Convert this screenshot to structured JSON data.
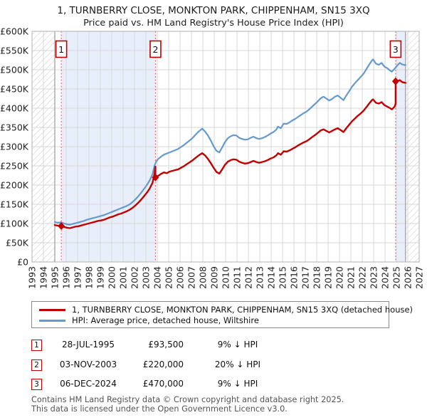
{
  "title": "1, TURNBERRY CLOSE, MONKTON PARK, CHIPPENHAM, SN15 3XQ",
  "subtitle": "Price paid vs. HM Land Registry's House Price Index (HPI)",
  "legend": {
    "property": "1, TURNBERRY CLOSE, MONKTON PARK, CHIPPENHAM, SN15 3XQ (detached house)",
    "hpi": "HPI: Average price, detached house, Wiltshire"
  },
  "colors": {
    "property_line": "#c00000",
    "hpi_line": "#6699cc",
    "sale_dash": "#f07070",
    "shade": "#e9effa",
    "hatch": "#c8c8c8",
    "grid": "#d7d7d7",
    "border": "#b0b0b0",
    "boundary": "#999999",
    "axis_text": "#222222"
  },
  "sales_table": {
    "rows": [
      {
        "num": "1",
        "date": "28-JUL-1995",
        "price": "£93,500",
        "vs_hpi": "9% ↓ HPI"
      },
      {
        "num": "2",
        "date": "03-NOV-2003",
        "price": "£220,000",
        "vs_hpi": "20% ↓ HPI"
      },
      {
        "num": "3",
        "date": "06-DEC-2024",
        "price": "£470,000",
        "vs_hpi": "9% ↓ HPI"
      }
    ]
  },
  "footer": {
    "line1": "Contains HM Land Registry data © Crown copyright and database right 2025.",
    "line2": "This data is licensed under the Open Government Licence v3.0."
  },
  "chart_data": {
    "type": "line",
    "x_range": [
      1993,
      2027
    ],
    "y_range": [
      0,
      600
    ],
    "x_tick_labels": [
      "1993",
      "1994",
      "1995",
      "1996",
      "1997",
      "1998",
      "1999",
      "2000",
      "2001",
      "2002",
      "2003",
      "2004",
      "2005",
      "2006",
      "2007",
      "2008",
      "2009",
      "2010",
      "2011",
      "2012",
      "2013",
      "2014",
      "2015",
      "2016",
      "2017",
      "2018",
      "2019",
      "2020",
      "2021",
      "2022",
      "2023",
      "2024",
      "2025",
      "2026",
      "2027"
    ],
    "y_ticks": [
      [
        0,
        "£0"
      ],
      [
        50,
        "£50K"
      ],
      [
        100,
        "£100K"
      ],
      [
        150,
        "£150K"
      ],
      [
        200,
        "£200K"
      ],
      [
        250,
        "£250K"
      ],
      [
        300,
        "£300K"
      ],
      [
        350,
        "£350K"
      ],
      [
        400,
        "£400K"
      ],
      [
        450,
        "£450K"
      ],
      [
        500,
        "£500K"
      ],
      [
        550,
        "£550K"
      ],
      [
        600,
        "£600K"
      ]
    ],
    "data_start_year": 1995.0,
    "data_end_year": 2025.8,
    "regions": {
      "hatch": [
        [
          1993,
          1995.0
        ],
        [
          2025.8,
          2027
        ]
      ],
      "shade": [
        [
          1995.57,
          2003.84
        ],
        [
          2024.93,
          2025.8
        ]
      ]
    },
    "sales": [
      {
        "num": "1",
        "year": 1995.57,
        "price_k": 93.5
      },
      {
        "num": "2",
        "year": 2003.84,
        "price_k": 220
      },
      {
        "num": "3",
        "year": 2024.93,
        "price_k": 470
      }
    ],
    "series": [
      {
        "name": "HPI: Average price, detached house, Wiltshire",
        "color_key": "hpi_line",
        "points": [
          [
            1995.0,
            104
          ],
          [
            1995.25,
            102
          ],
          [
            1995.57,
            103
          ],
          [
            1995.83,
            100
          ],
          [
            1996.08,
            98
          ],
          [
            1996.33,
            97
          ],
          [
            1996.58,
            99
          ],
          [
            1996.83,
            101
          ],
          [
            1997.08,
            103
          ],
          [
            1997.33,
            105
          ],
          [
            1997.58,
            107
          ],
          [
            1997.83,
            110
          ],
          [
            1998.08,
            112
          ],
          [
            1998.33,
            114
          ],
          [
            1998.58,
            116
          ],
          [
            1998.83,
            118
          ],
          [
            1999.08,
            120
          ],
          [
            1999.33,
            122
          ],
          [
            1999.58,
            125
          ],
          [
            1999.83,
            128
          ],
          [
            2000.08,
            131
          ],
          [
            2000.33,
            134
          ],
          [
            2000.58,
            137
          ],
          [
            2000.83,
            140
          ],
          [
            2001.08,
            143
          ],
          [
            2001.33,
            146
          ],
          [
            2001.58,
            150
          ],
          [
            2001.83,
            156
          ],
          [
            2002.08,
            163
          ],
          [
            2002.33,
            171
          ],
          [
            2002.58,
            180
          ],
          [
            2002.83,
            190
          ],
          [
            2003.08,
            200
          ],
          [
            2003.33,
            212
          ],
          [
            2003.58,
            228
          ],
          [
            2003.75,
            250
          ],
          [
            2003.92,
            262
          ],
          [
            2004.08,
            268
          ],
          [
            2004.33,
            274
          ],
          [
            2004.58,
            279
          ],
          [
            2004.83,
            282
          ],
          [
            2005.08,
            285
          ],
          [
            2005.33,
            288
          ],
          [
            2005.58,
            291
          ],
          [
            2005.83,
            294
          ],
          [
            2006.08,
            299
          ],
          [
            2006.33,
            304
          ],
          [
            2006.58,
            310
          ],
          [
            2006.83,
            316
          ],
          [
            2007.08,
            322
          ],
          [
            2007.33,
            330
          ],
          [
            2007.58,
            338
          ],
          [
            2007.83,
            344
          ],
          [
            2007.95,
            347
          ],
          [
            2008.2,
            339
          ],
          [
            2008.45,
            329
          ],
          [
            2008.7,
            316
          ],
          [
            2008.95,
            301
          ],
          [
            2009.2,
            289
          ],
          [
            2009.45,
            285
          ],
          [
            2009.7,
            298
          ],
          [
            2009.95,
            312
          ],
          [
            2010.2,
            322
          ],
          [
            2010.45,
            327
          ],
          [
            2010.7,
            330
          ],
          [
            2010.95,
            329
          ],
          [
            2011.2,
            323
          ],
          [
            2011.45,
            320
          ],
          [
            2011.7,
            318
          ],
          [
            2011.95,
            319
          ],
          [
            2012.2,
            323
          ],
          [
            2012.45,
            326
          ],
          [
            2012.7,
            322
          ],
          [
            2012.95,
            320
          ],
          [
            2013.2,
            322
          ],
          [
            2013.45,
            325
          ],
          [
            2013.7,
            329
          ],
          [
            2013.95,
            334
          ],
          [
            2014.2,
            338
          ],
          [
            2014.45,
            344
          ],
          [
            2014.6,
            352
          ],
          [
            2014.85,
            348
          ],
          [
            2015.1,
            360
          ],
          [
            2015.35,
            359
          ],
          [
            2015.6,
            363
          ],
          [
            2015.85,
            368
          ],
          [
            2016.1,
            372
          ],
          [
            2016.35,
            377
          ],
          [
            2016.6,
            382
          ],
          [
            2016.85,
            387
          ],
          [
            2017.1,
            391
          ],
          [
            2017.35,
            397
          ],
          [
            2017.6,
            404
          ],
          [
            2017.85,
            411
          ],
          [
            2018.1,
            418
          ],
          [
            2018.35,
            426
          ],
          [
            2018.6,
            430
          ],
          [
            2018.85,
            425
          ],
          [
            2019.1,
            420
          ],
          [
            2019.35,
            424
          ],
          [
            2019.6,
            430
          ],
          [
            2019.85,
            433
          ],
          [
            2020.1,
            427
          ],
          [
            2020.35,
            421
          ],
          [
            2020.6,
            433
          ],
          [
            2020.85,
            444
          ],
          [
            2021.1,
            456
          ],
          [
            2021.35,
            465
          ],
          [
            2021.6,
            473
          ],
          [
            2021.85,
            481
          ],
          [
            2022.1,
            489
          ],
          [
            2022.35,
            501
          ],
          [
            2022.6,
            513
          ],
          [
            2022.85,
            524
          ],
          [
            2022.95,
            527
          ],
          [
            2023.2,
            516
          ],
          [
            2023.45,
            513
          ],
          [
            2023.7,
            518
          ],
          [
            2023.95,
            508
          ],
          [
            2024.2,
            504
          ],
          [
            2024.45,
            498
          ],
          [
            2024.6,
            495
          ],
          [
            2024.85,
            503
          ],
          [
            2025.1,
            512
          ],
          [
            2025.3,
            518
          ],
          [
            2025.5,
            514
          ],
          [
            2025.8,
            512
          ]
        ]
      },
      {
        "name": "1, TURNBERRY CLOSE, MONKTON PARK, CHIPPENHAM, SN15 3XQ (detached house)",
        "color_key": "property_line",
        "points": [
          [
            1995.0,
            96
          ],
          [
            1995.25,
            94.5
          ],
          [
            1995.57,
            93.5
          ],
          [
            1995.83,
            91
          ],
          [
            1996.08,
            89
          ],
          [
            1996.33,
            88
          ],
          [
            1996.58,
            90
          ],
          [
            1996.83,
            92
          ],
          [
            1997.08,
            93
          ],
          [
            1997.33,
            95
          ],
          [
            1997.58,
            97
          ],
          [
            1997.83,
            99
          ],
          [
            1998.08,
            101
          ],
          [
            1998.33,
            103
          ],
          [
            1998.58,
            105
          ],
          [
            1998.83,
            107
          ],
          [
            1999.08,
            108
          ],
          [
            1999.33,
            110
          ],
          [
            1999.58,
            113
          ],
          [
            1999.83,
            116
          ],
          [
            2000.08,
            118
          ],
          [
            2000.33,
            121
          ],
          [
            2000.58,
            124
          ],
          [
            2000.83,
            126
          ],
          [
            2001.08,
            129
          ],
          [
            2001.33,
            132
          ],
          [
            2001.58,
            136
          ],
          [
            2001.83,
            141
          ],
          [
            2002.08,
            147
          ],
          [
            2002.33,
            154
          ],
          [
            2002.58,
            162
          ],
          [
            2002.83,
            171
          ],
          [
            2003.08,
            180
          ],
          [
            2003.33,
            191
          ],
          [
            2003.58,
            206
          ],
          [
            2003.75,
            228
          ],
          [
            2003.84,
            248
          ],
          [
            2003.84,
            220
          ],
          [
            2004.08,
            224
          ],
          [
            2004.33,
            229
          ],
          [
            2004.58,
            233
          ],
          [
            2004.83,
            231
          ],
          [
            2005.08,
            235
          ],
          [
            2005.33,
            237
          ],
          [
            2005.58,
            239
          ],
          [
            2005.83,
            241
          ],
          [
            2006.08,
            245
          ],
          [
            2006.33,
            249
          ],
          [
            2006.58,
            254
          ],
          [
            2006.83,
            259
          ],
          [
            2007.08,
            264
          ],
          [
            2007.33,
            270
          ],
          [
            2007.58,
            276
          ],
          [
            2007.83,
            281
          ],
          [
            2007.95,
            283
          ],
          [
            2008.2,
            277
          ],
          [
            2008.45,
            268
          ],
          [
            2008.7,
            257
          ],
          [
            2008.95,
            245
          ],
          [
            2009.2,
            234
          ],
          [
            2009.45,
            230
          ],
          [
            2009.7,
            241
          ],
          [
            2009.95,
            253
          ],
          [
            2010.2,
            261
          ],
          [
            2010.45,
            265
          ],
          [
            2010.7,
            267
          ],
          [
            2010.95,
            266
          ],
          [
            2011.2,
            261
          ],
          [
            2011.45,
            258
          ],
          [
            2011.7,
            256
          ],
          [
            2011.95,
            257
          ],
          [
            2012.2,
            260
          ],
          [
            2012.45,
            263
          ],
          [
            2012.7,
            260
          ],
          [
            2012.95,
            258
          ],
          [
            2013.2,
            260
          ],
          [
            2013.45,
            262
          ],
          [
            2013.7,
            265
          ],
          [
            2013.95,
            269
          ],
          [
            2014.2,
            272
          ],
          [
            2014.45,
            277
          ],
          [
            2014.6,
            283
          ],
          [
            2014.85,
            279
          ],
          [
            2015.1,
            288
          ],
          [
            2015.35,
            287
          ],
          [
            2015.6,
            290
          ],
          [
            2015.85,
            294
          ],
          [
            2016.1,
            298
          ],
          [
            2016.35,
            303
          ],
          [
            2016.6,
            307
          ],
          [
            2016.85,
            311
          ],
          [
            2017.1,
            314
          ],
          [
            2017.35,
            319
          ],
          [
            2017.6,
            325
          ],
          [
            2017.85,
            330
          ],
          [
            2018.1,
            336
          ],
          [
            2018.35,
            342
          ],
          [
            2018.6,
            345
          ],
          [
            2018.85,
            341
          ],
          [
            2019.1,
            337
          ],
          [
            2019.35,
            341
          ],
          [
            2019.6,
            345
          ],
          [
            2019.85,
            348
          ],
          [
            2020.1,
            343
          ],
          [
            2020.35,
            338
          ],
          [
            2020.6,
            348
          ],
          [
            2020.85,
            357
          ],
          [
            2021.1,
            366
          ],
          [
            2021.35,
            373
          ],
          [
            2021.6,
            380
          ],
          [
            2021.85,
            386
          ],
          [
            2022.1,
            393
          ],
          [
            2022.35,
            402
          ],
          [
            2022.6,
            412
          ],
          [
            2022.85,
            421
          ],
          [
            2022.95,
            423
          ],
          [
            2023.2,
            414
          ],
          [
            2023.45,
            412
          ],
          [
            2023.7,
            416
          ],
          [
            2023.95,
            408
          ],
          [
            2024.2,
            404
          ],
          [
            2024.45,
            400
          ],
          [
            2024.6,
            397
          ],
          [
            2024.85,
            404
          ],
          [
            2024.93,
            412
          ],
          [
            2024.93,
            470
          ],
          [
            2025.1,
            471
          ],
          [
            2025.3,
            473
          ],
          [
            2025.5,
            468
          ],
          [
            2025.8,
            466
          ]
        ]
      }
    ]
  }
}
